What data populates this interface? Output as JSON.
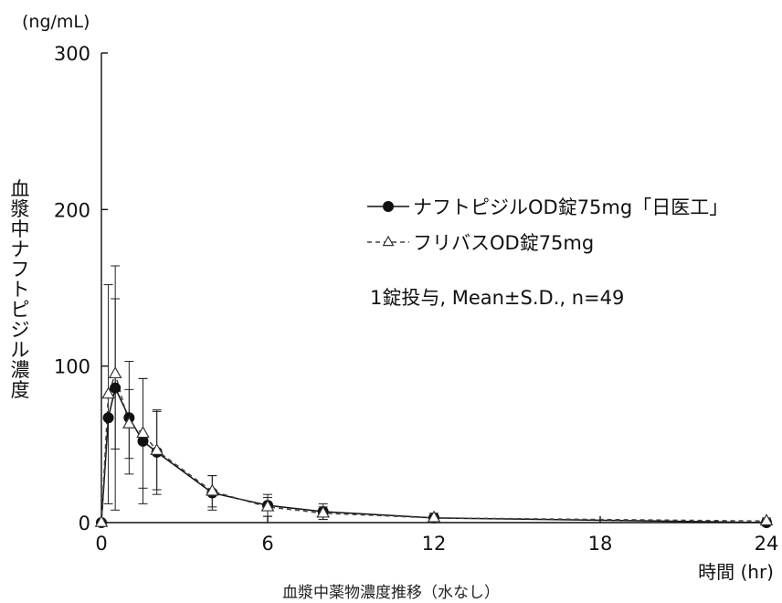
{
  "chart_data": {
    "type": "line",
    "y_unit": "(ng/mL)",
    "ylabel": "血漿中ナフトピジル濃度",
    "xlabel": "時間 (hr)",
    "caption": "血漿中薬物濃度推移（水なし）",
    "note": "1錠投与, Mean±S.D., n=49",
    "xlim": [
      0,
      24
    ],
    "ylim": [
      0,
      300
    ],
    "x_ticks": [
      0,
      6,
      12,
      18,
      24
    ],
    "y_ticks": [
      0,
      100,
      200,
      300
    ],
    "grid": false,
    "legend_position": "right",
    "series": [
      {
        "name": "ナフトピジルOD錠75mg「日医工」",
        "marker": "filled-circle",
        "line_style": "solid",
        "x": [
          0,
          0.25,
          0.5,
          1,
          1.5,
          2,
          4,
          6,
          8,
          12,
          24
        ],
        "y": [
          0,
          67,
          86,
          67,
          52,
          45,
          19,
          11,
          7,
          3,
          0
        ],
        "sd": [
          0,
          0,
          78,
          36,
          40,
          27,
          11,
          7,
          5,
          3,
          2
        ]
      },
      {
        "name": "フリバスOD錠75mg",
        "marker": "open-triangle",
        "line_style": "dashed",
        "x": [
          0,
          0.25,
          0.5,
          1,
          1.5,
          2,
          4,
          6,
          8,
          12,
          24
        ],
        "y": [
          0,
          82,
          95,
          63,
          57,
          46,
          20,
          10,
          6,
          3,
          1
        ],
        "sd": [
          0,
          70,
          48,
          22,
          35,
          25,
          10,
          6,
          4,
          2,
          2
        ]
      }
    ]
  }
}
